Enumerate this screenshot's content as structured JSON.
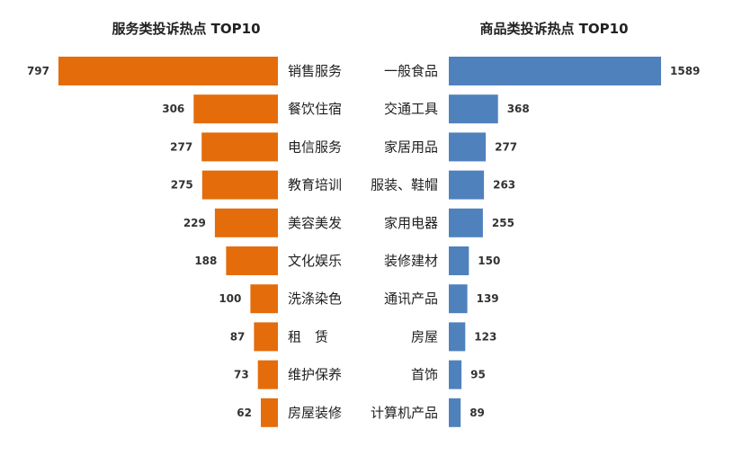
{
  "chart_data": [
    {
      "type": "bar",
      "orientation": "horizontal",
      "direction": "right-to-left",
      "title": "服务类投诉热点  TOP10",
      "categories": [
        "销售服务",
        "餐饮住宿",
        "电信服务",
        "教育培训",
        "美容美发",
        "文化娱乐",
        "洗涤染色",
        "租　赁",
        "维护保养",
        "房屋装修"
      ],
      "values": [
        797,
        306,
        277,
        275,
        229,
        188,
        100,
        87,
        73,
        62
      ],
      "color": "#E46C0A",
      "xlim": [
        0,
        797
      ]
    },
    {
      "type": "bar",
      "orientation": "horizontal",
      "direction": "left-to-right",
      "title": "商品类投诉热点  TOP10",
      "categories": [
        "一般食品",
        "交通工具",
        "家居用品",
        "服装、鞋帽",
        "家用电器",
        "装修建材",
        "通讯产品",
        "房屋",
        "首饰",
        "计算机产品"
      ],
      "values": [
        1589,
        368,
        277,
        263,
        255,
        150,
        139,
        123,
        95,
        89
      ],
      "color": "#4F81BD",
      "xlim": [
        0,
        1589
      ]
    }
  ]
}
